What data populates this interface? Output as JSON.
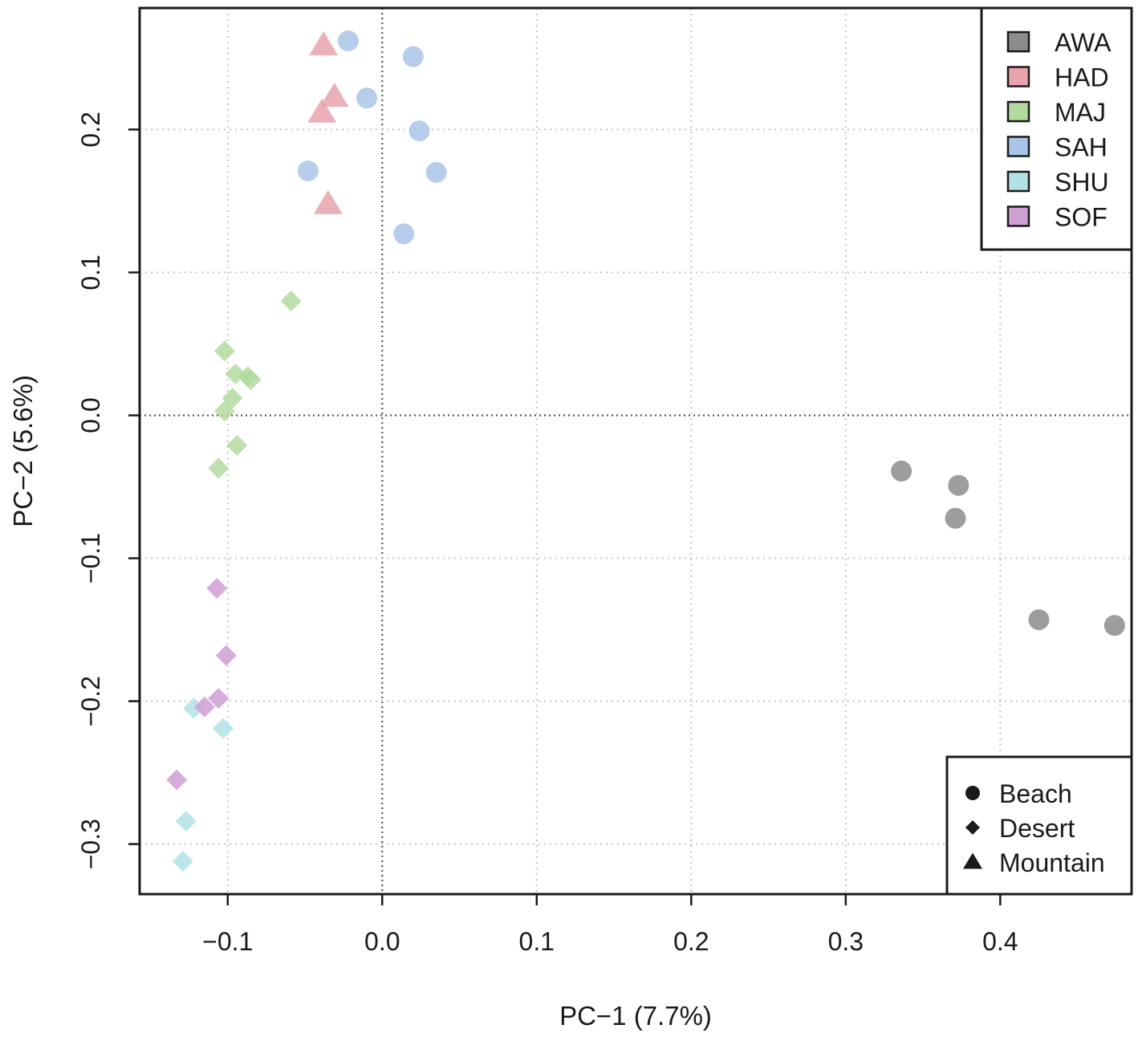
{
  "chart_data": {
    "type": "scatter",
    "xlabel": "PC−1 (7.7%)",
    "ylabel": "PC−2 (5.6%)",
    "xlim": [
      -0.157,
      0.485
    ],
    "ylim": [
      -0.335,
      0.285
    ],
    "x_ticks": [
      -0.1,
      0.0,
      0.1,
      0.2,
      0.3,
      0.4
    ],
    "x_tick_labels": [
      "−0.1",
      "0.0",
      "0.1",
      "0.2",
      "0.3",
      "0.4"
    ],
    "y_ticks": [
      -0.3,
      -0.2,
      -0.1,
      0.0,
      0.1,
      0.2
    ],
    "y_tick_labels": [
      "−0.3",
      "−0.2",
      "−0.1",
      "0.0",
      "0.1",
      "0.2"
    ],
    "grid": true,
    "zero_lines": true,
    "color_legend": {
      "position": "top-right",
      "items": [
        {
          "label": "AWA",
          "color": "#8c8c8c"
        },
        {
          "label": "HAD",
          "color": "#e8a3ac"
        },
        {
          "label": "MAJ",
          "color": "#b3dba0"
        },
        {
          "label": "SAH",
          "color": "#a9c6e8"
        },
        {
          "label": "SHU",
          "color": "#b2e2e6"
        },
        {
          "label": "SOF",
          "color": "#cf9fd3"
        }
      ]
    },
    "shape_legend": {
      "position": "bottom-right",
      "items": [
        {
          "label": "Beach",
          "shape": "circle"
        },
        {
          "label": "Desert",
          "shape": "diamond"
        },
        {
          "label": "Mountain",
          "shape": "triangle"
        }
      ]
    },
    "series": [
      {
        "name": "AWA",
        "habitat": "Beach",
        "shape": "circle",
        "color": "#8c8c8c",
        "points": [
          [
            0.336,
            -0.039
          ],
          [
            0.373,
            -0.049
          ],
          [
            0.371,
            -0.072
          ],
          [
            0.425,
            -0.143
          ],
          [
            0.474,
            -0.147
          ]
        ]
      },
      {
        "name": "HAD",
        "habitat": "Mountain",
        "shape": "triangle",
        "color": "#e8a3ac",
        "points": [
          [
            -0.038,
            0.259
          ],
          [
            -0.031,
            0.223
          ],
          [
            -0.039,
            0.212
          ],
          [
            -0.035,
            0.148
          ]
        ]
      },
      {
        "name": "MAJ",
        "habitat": "Desert",
        "shape": "diamond",
        "color": "#b3dba0",
        "points": [
          [
            -0.059,
            0.08
          ],
          [
            -0.102,
            0.045
          ],
          [
            -0.095,
            0.029
          ],
          [
            -0.087,
            0.027
          ],
          [
            -0.085,
            0.025
          ],
          [
            -0.097,
            0.012
          ],
          [
            -0.102,
            0.003
          ],
          [
            -0.094,
            -0.021
          ],
          [
            -0.106,
            -0.037
          ]
        ]
      },
      {
        "name": "SAH",
        "habitat": "Beach",
        "shape": "circle",
        "color": "#a9c6e8",
        "points": [
          [
            -0.022,
            0.262
          ],
          [
            0.02,
            0.251
          ],
          [
            -0.01,
            0.222
          ],
          [
            0.024,
            0.199
          ],
          [
            -0.048,
            0.171
          ],
          [
            0.035,
            0.17
          ],
          [
            0.014,
            0.127
          ]
        ]
      },
      {
        "name": "SHU",
        "habitat": "Desert",
        "shape": "diamond",
        "color": "#b2e2e6",
        "points": [
          [
            -0.122,
            -0.205
          ],
          [
            -0.103,
            -0.219
          ],
          [
            -0.127,
            -0.284
          ],
          [
            -0.129,
            -0.312
          ]
        ]
      },
      {
        "name": "SOF",
        "habitat": "Desert",
        "shape": "diamond",
        "color": "#cf9fd3",
        "points": [
          [
            -0.107,
            -0.121
          ],
          [
            -0.101,
            -0.168
          ],
          [
            -0.106,
            -0.198
          ],
          [
            -0.115,
            -0.204
          ],
          [
            -0.133,
            -0.255
          ]
        ]
      }
    ]
  }
}
